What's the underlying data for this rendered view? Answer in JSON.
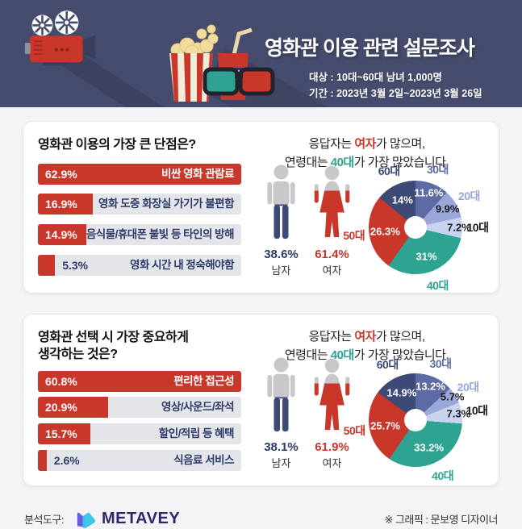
{
  "header": {
    "title": "영화관 이용 관련 설문조사",
    "target": "대상 : 10대~60대 남녀 1,000명",
    "period": "기간 : 2023년 3월 2일~2023년 3월 26일"
  },
  "colors": {
    "header_bg": "#464c6e",
    "red": "#c9362a",
    "teal": "#2fa391",
    "navy_text": "#2e3b6b",
    "bar_gray": "#e4e5e9",
    "pie_30s": "#5c6ba3",
    "pie_20s": "#9aa7d9",
    "pie_10s": "#c9d2f0",
    "pie_40s": "#2fa391",
    "pie_50s": "#c9362a",
    "pie_60s": "#3e4a76"
  },
  "cards": [
    {
      "question": "영화관 이용의 가장 큰 단점은?",
      "insight": {
        "l1a": "응답자는 ",
        "l1b": "여자",
        "l1c": "가 많으며,",
        "l2a": "연령대는 ",
        "l2b": "40대",
        "l2c": "가 가장 많았습니다."
      },
      "gender": {
        "male_pct": "38.6%",
        "male_label": "남자",
        "female_pct": "61.4%",
        "female_label": "여자"
      }
    },
    {
      "question": "영화관 선택 시 가장 중요하게\n생각하는 것은?",
      "insight": {
        "l1a": "응답자는 ",
        "l1b": "여자",
        "l1c": "가 많으며,",
        "l2a": "연령대는 ",
        "l2b": "40대",
        "l2c": "가 가장 많았습니다."
      },
      "gender": {
        "male_pct": "38.1%",
        "male_label": "남자",
        "female_pct": "61.9%",
        "female_label": "여자"
      }
    }
  ],
  "chart_data": [
    {
      "id": "disadvantage-bars",
      "type": "bar",
      "title": "영화관 이용의 가장 큰 단점은?",
      "unit": "%",
      "xlim": [
        0,
        62.9
      ],
      "categories": [
        "비싼 영화 관람료",
        "영화 도중 화장실 가기가 불편함",
        "음식물/휴대폰 불빛 등 타인의 방해",
        "영화 시간 내 정숙해야함"
      ],
      "values": [
        62.9,
        16.9,
        14.9,
        5.3
      ],
      "displays": [
        "62.9%",
        "16.9%",
        "14.9%",
        "5.3%"
      ]
    },
    {
      "id": "disadvantage-age-pie",
      "type": "pie",
      "donut": true,
      "start": "top",
      "direction": "clockwise",
      "slices": [
        {
          "label": "30대",
          "value": 11.6,
          "display": "11.6%",
          "color": "#5c6ba3",
          "label_color": "#5c6ba3",
          "value_color": "#ffffff"
        },
        {
          "label": "20대",
          "value": 9.9,
          "display": "9.9%",
          "color": "#9aa7d9",
          "label_color": "#9aa7d9",
          "value_color": "#1a1a1a"
        },
        {
          "label": "10대",
          "value": 7.2,
          "display": "7.2%",
          "color": "#c9d2f0",
          "label_color": "#1a1a1a",
          "value_color": "#1a1a1a"
        },
        {
          "label": "40대",
          "value": 31,
          "display": "31%",
          "color": "#2fa391",
          "label_color": "#2fa391",
          "value_color": "#ffffff"
        },
        {
          "label": "50대",
          "value": 26.3,
          "display": "26.3%",
          "color": "#c9362a",
          "label_color": "#c9362a",
          "value_color": "#ffffff"
        },
        {
          "label": "60대",
          "value": 14,
          "display": "14%",
          "color": "#3e4a76",
          "label_color": "#3e4a76",
          "value_color": "#ffffff"
        }
      ]
    },
    {
      "id": "selection-bars",
      "type": "bar",
      "title": "영화관 선택 시 가장 중요하게 생각하는 것은?",
      "unit": "%",
      "xlim": [
        0,
        60.8
      ],
      "categories": [
        "편리한 접근성",
        "영상/사운드/좌석",
        "할인/적립 등 혜택",
        "식음료 서비스"
      ],
      "values": [
        60.8,
        20.9,
        15.7,
        2.6
      ],
      "displays": [
        "60.8%",
        "20.9%",
        "15.7%",
        "2.6%"
      ]
    },
    {
      "id": "selection-age-pie",
      "type": "pie",
      "donut": true,
      "start": "top",
      "direction": "clockwise",
      "slices": [
        {
          "label": "30대",
          "value": 13.2,
          "display": "13.2%",
          "color": "#5c6ba3",
          "label_color": "#5c6ba3",
          "value_color": "#ffffff"
        },
        {
          "label": "20대",
          "value": 5.7,
          "display": "5.7%",
          "color": "#9aa7d9",
          "label_color": "#9aa7d9",
          "value_color": "#1a1a1a"
        },
        {
          "label": "10대",
          "value": 7.3,
          "display": "7.3%",
          "color": "#c9d2f0",
          "label_color": "#1a1a1a",
          "value_color": "#1a1a1a"
        },
        {
          "label": "40대",
          "value": 33.2,
          "display": "33.2%",
          "color": "#2fa391",
          "label_color": "#2fa391",
          "value_color": "#ffffff"
        },
        {
          "label": "50대",
          "value": 25.7,
          "display": "25.7%",
          "color": "#c9362a",
          "label_color": "#c9362a",
          "value_color": "#ffffff"
        },
        {
          "label": "60대",
          "value": 14.9,
          "display": "14.9%",
          "color": "#3e4a76",
          "label_color": "#3e4a76",
          "value_color": "#ffffff"
        }
      ]
    }
  ],
  "footer": {
    "tool_label": "분석도구:",
    "brand": "METAVEY",
    "credit": "※ 그래픽 : 문보영 디자이너"
  }
}
